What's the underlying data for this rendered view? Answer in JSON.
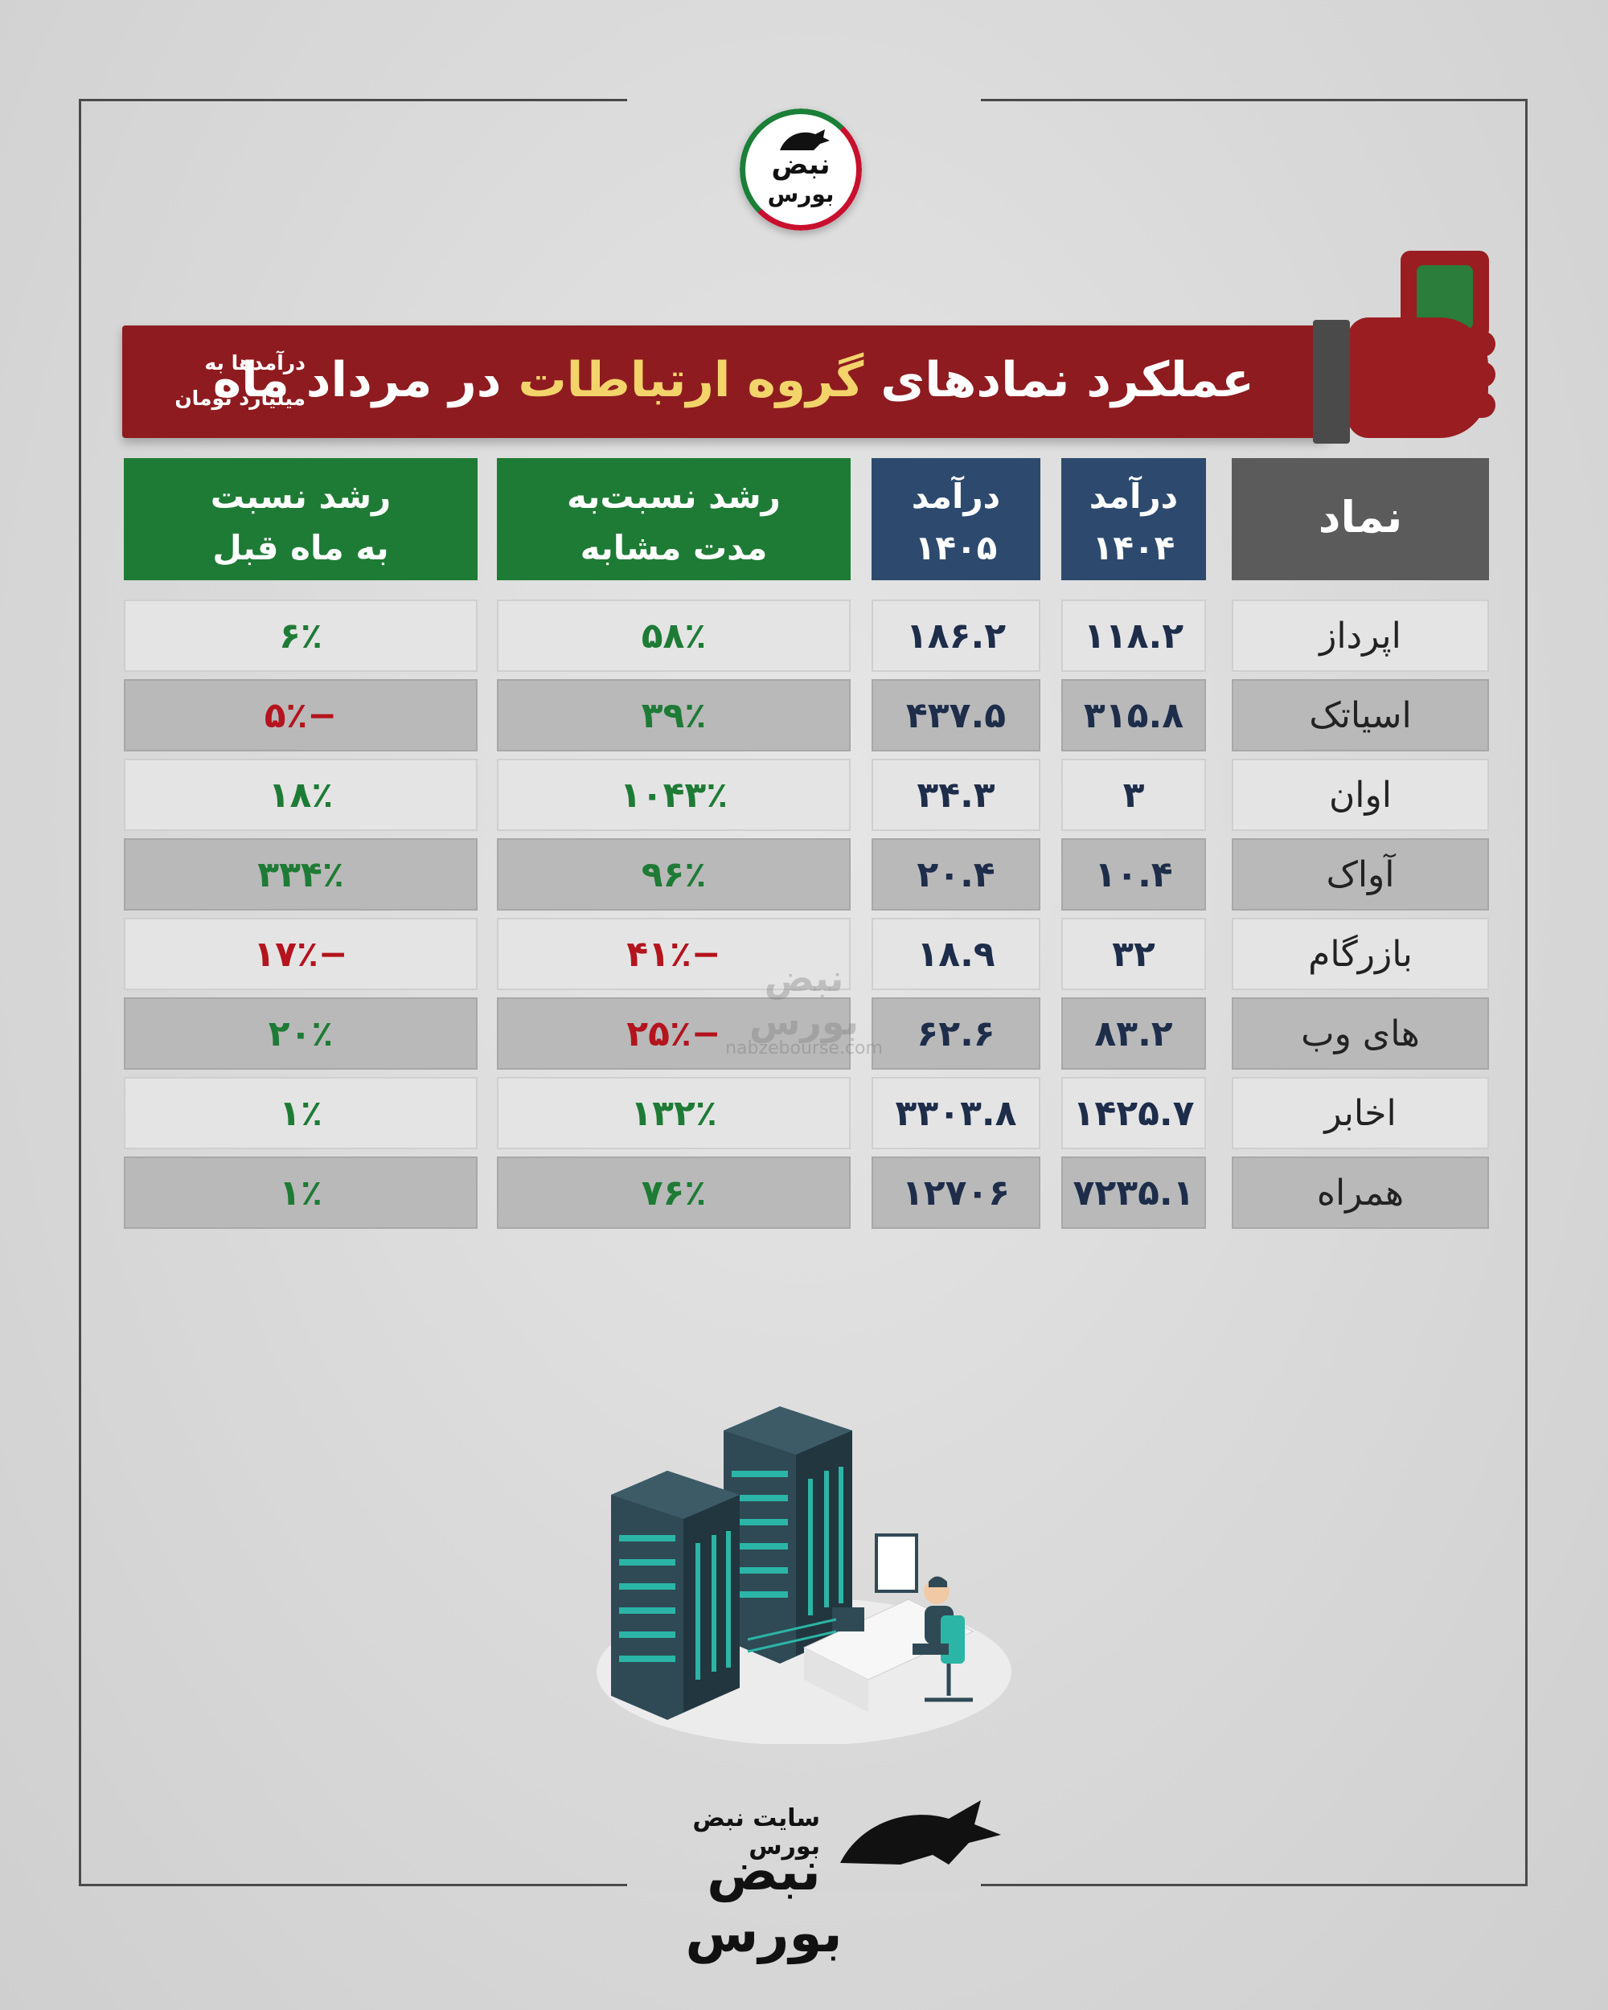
{
  "brand": {
    "logo_line1": "نبض",
    "logo_line2": "بورس",
    "watermark": "نبض بورس",
    "watermark_url": "nabzebourse.com",
    "footer_caption": "سایت نبض بورس",
    "footer_logo": "نبض بورس"
  },
  "banner": {
    "title_part1": "عملکرد نمادهای ",
    "title_highlight": "گروه ارتباطات",
    "title_part2": " در مرداد ماه",
    "note_line1": "درآمدها به",
    "note_line2": "میلیارد تومان"
  },
  "colors": {
    "banner": "#8e1b1f",
    "highlight": "#f2d46b",
    "header_green": "#1e7b35",
    "header_blue": "#2d4a6e",
    "header_gray": "#5b5b5b",
    "positive": "#1e7b35",
    "negative": "#b4141d"
  },
  "table": {
    "headers": {
      "symbol": "نماد",
      "income_1404_l1": "درآمد",
      "income_1404_l2": "۱۴۰۴",
      "income_1405_l1": "درآمد",
      "income_1405_l2": "۱۴۰۵",
      "growth_yoy_l1": "رشد نسبت‌به",
      "growth_yoy_l2": "مدت مشابه",
      "growth_mom_l1": "رشد نسبت",
      "growth_mom_l2": "به ماه قبل"
    },
    "rows": [
      {
        "symbol": "اپرداز",
        "income_1404": "۱۱۸.۲",
        "income_1405": "۱۸۶.۲",
        "growth_yoy": "۵۸٪",
        "growth_mom": "۶٪"
      },
      {
        "symbol": "اسیاتک",
        "income_1404": "۳۱۵.۸",
        "income_1405": "۴۳۷.۵",
        "growth_yoy": "۳۹٪",
        "growth_mom": "−۵٪"
      },
      {
        "symbol": "اوان",
        "income_1404": "۳",
        "income_1405": "۳۴.۳",
        "growth_yoy": "۱۰۴۳٪",
        "growth_mom": "۱۸٪"
      },
      {
        "symbol": "آواک",
        "income_1404": "۱۰.۴",
        "income_1405": "۲۰.۴",
        "growth_yoy": "۹۶٪",
        "growth_mom": "۳۳۴٪"
      },
      {
        "symbol": "بازرگام",
        "income_1404": "۳۲",
        "income_1405": "۱۸.۹",
        "growth_yoy": "−۴۱٪",
        "growth_mom": "−۱۷٪"
      },
      {
        "symbol": "های وب",
        "income_1404": "۸۳.۲",
        "income_1405": "۶۲.۶",
        "growth_yoy": "−۲۵٪",
        "growth_mom": "۲۰٪"
      },
      {
        "symbol": "اخابر",
        "income_1404": "۱۴۲۵.۷",
        "income_1405": "۳۳۰۳.۸",
        "growth_yoy": "۱۳۲٪",
        "growth_mom": "۱٪"
      },
      {
        "symbol": "همراه",
        "income_1404": "۷۲۳۵.۱",
        "income_1405": "۱۲۷۰۶",
        "growth_yoy": "۷۶٪",
        "growth_mom": "۱٪"
      }
    ]
  }
}
